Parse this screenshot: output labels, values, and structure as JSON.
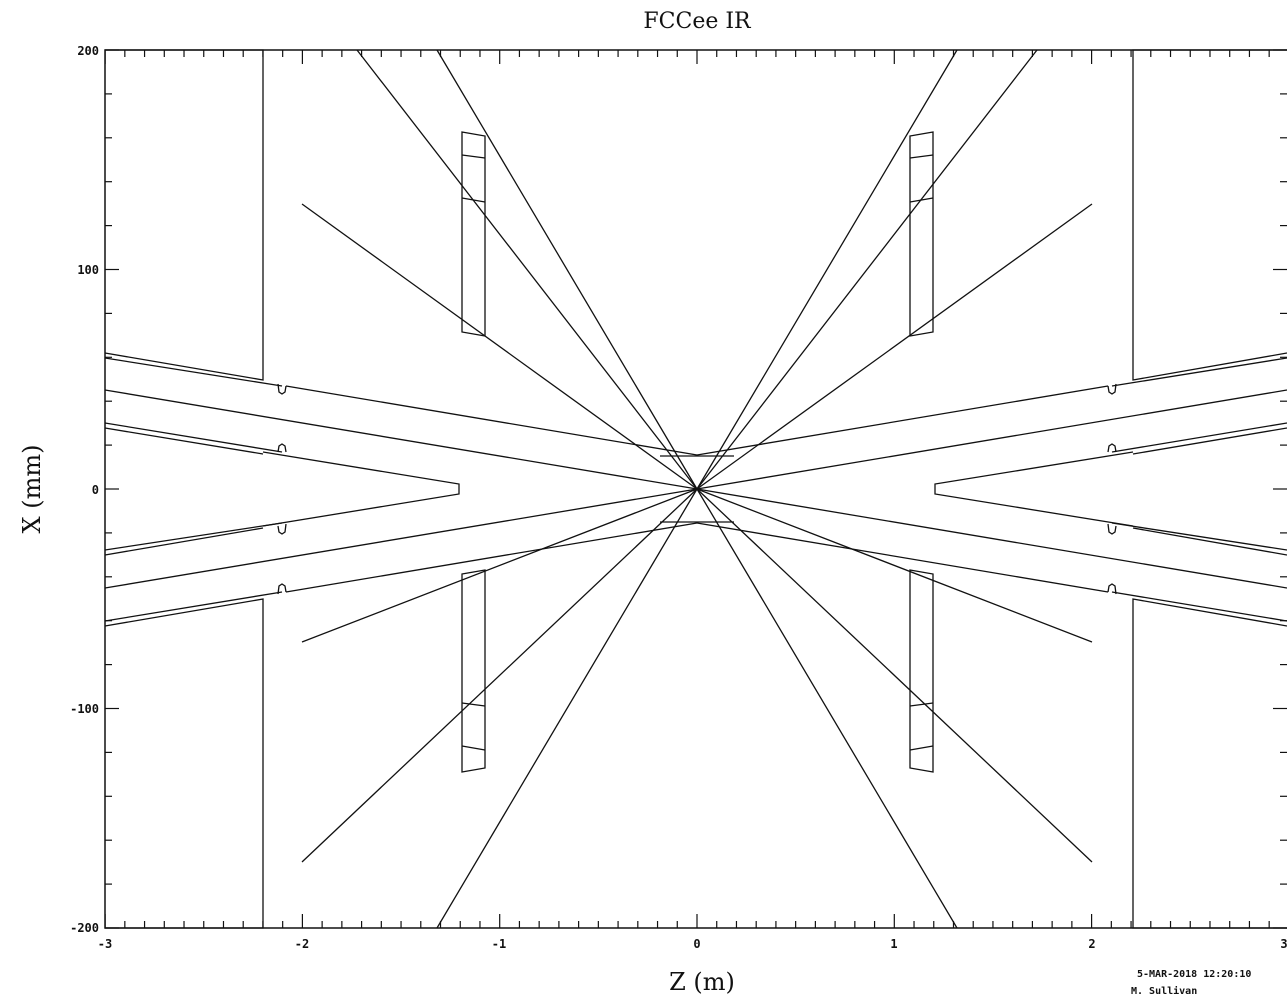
{
  "title": "FCCee IR",
  "x_axis": {
    "label": "Z (m)",
    "ticks": [
      "-3",
      "-2",
      "-1",
      "0",
      "1",
      "2",
      "3"
    ]
  },
  "y_axis": {
    "label": "X (mm)",
    "ticks": [
      "200",
      "100",
      "0",
      "-100",
      "-200"
    ]
  },
  "footer": {
    "timestamp": "5-MAR-2018 12:20:10",
    "author": "M. Sullivan"
  }
}
